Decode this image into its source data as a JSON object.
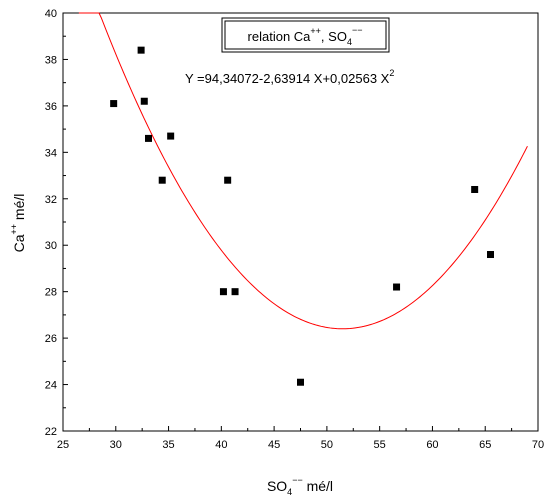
{
  "chart_data": {
    "type": "scatter",
    "title": "",
    "legend": {
      "main": "relation Ca",
      "sup1": "++",
      "mid": ", SO",
      "sub1": "4",
      "sup2": "−−",
      "placement": "top-center"
    },
    "equation": {
      "text": "Y =94,34072-2,63914 X+0,02563 X",
      "sup": "2"
    },
    "xlabel": {
      "main": "SO",
      "sub": "4",
      "sup": "−−",
      "rest": " mé/l"
    },
    "ylabel": {
      "main": "Ca",
      "sup": "++",
      "rest": " mé/l"
    },
    "xlim": [
      25,
      70
    ],
    "ylim": [
      22,
      40
    ],
    "x_ticks": [
      "25",
      "30",
      "35",
      "40",
      "45",
      "50",
      "55",
      "60",
      "65",
      "70"
    ],
    "y_ticks": [
      "22",
      "24",
      "26",
      "28",
      "30",
      "32",
      "34",
      "36",
      "38",
      "40"
    ],
    "grid": false,
    "points": [
      {
        "x": 29.8,
        "y": 36.1
      },
      {
        "x": 32.4,
        "y": 38.4
      },
      {
        "x": 32.7,
        "y": 36.2
      },
      {
        "x": 33.1,
        "y": 34.6
      },
      {
        "x": 34.4,
        "y": 32.8
      },
      {
        "x": 35.2,
        "y": 34.7
      },
      {
        "x": 40.2,
        "y": 28.0
      },
      {
        "x": 40.6,
        "y": 32.8
      },
      {
        "x": 41.3,
        "y": 28.0
      },
      {
        "x": 47.5,
        "y": 24.1
      },
      {
        "x": 56.6,
        "y": 28.2
      },
      {
        "x": 64.0,
        "y": 32.4
      },
      {
        "x": 65.5,
        "y": 29.6
      }
    ],
    "fit": {
      "type": "polynomial",
      "coefficients": [
        94.34072,
        -2.63914,
        0.02563
      ],
      "x_range": [
        26.5,
        69.0
      ],
      "color": "#ff0000"
    },
    "marker_color": "#000000"
  }
}
